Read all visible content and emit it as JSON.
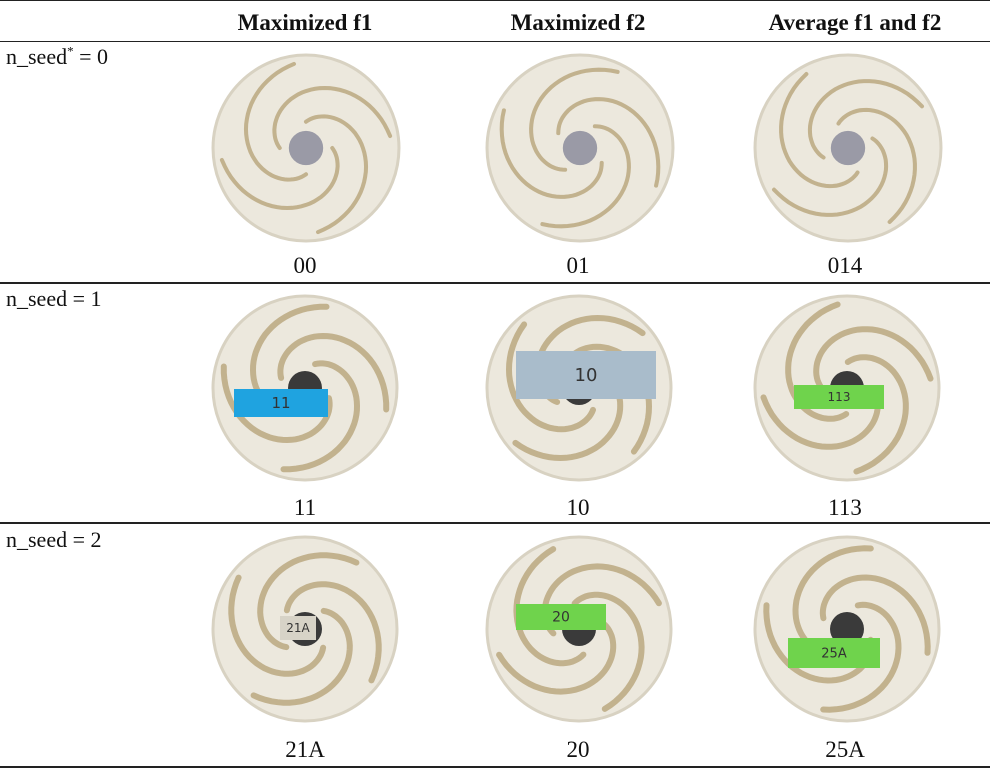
{
  "table": {
    "columns": [
      "Maximized f1",
      "Maximized f2",
      "Average f1 and f2"
    ],
    "rows": [
      {
        "label_prefix": "n_seed",
        "label_sup": "*",
        "label_suffix": " = 0",
        "codes": [
          "00",
          "01",
          "014"
        ],
        "tags": [
          "",
          "",
          ""
        ]
      },
      {
        "label_prefix": "n_seed",
        "label_sup": "",
        "label_suffix": " = 1",
        "codes": [
          "11",
          "10",
          "113"
        ],
        "tags": [
          "11",
          "10",
          "113"
        ]
      },
      {
        "label_prefix": "n_seed",
        "label_sup": "",
        "label_suffix": " = 2",
        "codes": [
          "21A",
          "20",
          "25A"
        ],
        "tags": [
          "21A",
          "20",
          "25A"
        ]
      }
    ]
  },
  "colors": {
    "disc": "#ece8dd",
    "disc_shade": "#d8d2c2",
    "groove": "#b8a47a",
    "tag_blue": "#1fa3e0",
    "tag_grey": "#a9bccb",
    "tag_green": "#6fd34c"
  }
}
